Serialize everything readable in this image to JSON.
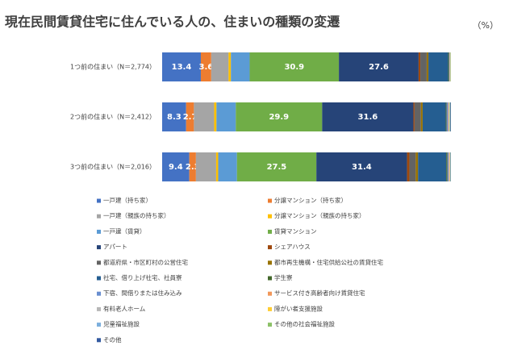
{
  "chart_data": {
    "type": "stacked-barh",
    "title": "現在民間賃貸住宅に住んでいる人の、住まいの種類の変遷",
    "unit": "（%）",
    "categories": [
      "1つ前の住まい（N＝2,774）",
      "2つ前の住まい（N＝2,412）",
      "3つ前の住まい（N＝2,016）"
    ],
    "xlim": [
      0,
      100
    ],
    "legend": "bottom",
    "series": [
      {
        "name": "一戸建（持ち家）",
        "color": "#4472c4",
        "values": [
          13.4,
          8.3,
          9.4
        ],
        "data_labels": true
      },
      {
        "name": "分譲マンション（持ち家）",
        "color": "#ed7d31",
        "values": [
          3.6,
          2.7,
          2.3
        ],
        "data_labels": true
      },
      {
        "name": "一戸建（親族の持ち家）",
        "color": "#a5a5a5",
        "values": [
          6.0,
          7.0,
          7.0
        ]
      },
      {
        "name": "分譲マンション（親族の持ち家）",
        "color": "#ffc000",
        "values": [
          0.8,
          0.8,
          0.7
        ]
      },
      {
        "name": "一戸建（賃貸）",
        "color": "#5b9bd5",
        "values": [
          6.5,
          6.7,
          6.5
        ]
      },
      {
        "name": "賃貸マンション",
        "color": "#70ad47",
        "values": [
          30.9,
          29.9,
          27.5
        ],
        "data_labels": true
      },
      {
        "name": "アパート",
        "color": "#264478",
        "values": [
          27.6,
          31.6,
          31.4
        ],
        "data_labels": true
      },
      {
        "name": "シェアハウス",
        "color": "#9e480e",
        "values": [
          0.6,
          0.4,
          0.8
        ]
      },
      {
        "name": "都道府県・市区町村の公営住宅",
        "color": "#636363",
        "values": [
          2.2,
          2.2,
          2.2
        ]
      },
      {
        "name": "都市再生機構・住宅供給公社の賃貸住宅",
        "color": "#997300",
        "values": [
          0.6,
          0.6,
          0.8
        ]
      },
      {
        "name": "社宅、借り上げ社宅、社員寮",
        "color": "#255e91",
        "values": [
          6.8,
          8.0,
          9.8
        ]
      },
      {
        "name": "学生寮",
        "color": "#43682b",
        "values": [
          0.3,
          0.3,
          0.4
        ]
      },
      {
        "name": "下宿、間借りまたは住み込み",
        "color": "#698ed0",
        "values": [
          0.2,
          0.5,
          0.4
        ]
      },
      {
        "name": "サービス付き高齢者向け賃貸住宅",
        "color": "#f1975a",
        "values": [
          0.1,
          0.2,
          0.2
        ]
      },
      {
        "name": "有料老人ホーム",
        "color": "#b7b7b7",
        "values": [
          0.1,
          0.2,
          0.2
        ]
      },
      {
        "name": "障がい者支援施設",
        "color": "#ffcd33",
        "values": [
          0.1,
          0.1,
          0.1
        ]
      },
      {
        "name": "児童福祉施設",
        "color": "#7cafdd",
        "values": [
          0.1,
          0.1,
          0.1
        ]
      },
      {
        "name": "その他の社会福祉施設",
        "color": "#8cc168",
        "values": [
          0.1,
          0.2,
          0.1
        ]
      },
      {
        "name": "その他",
        "color": "#335aa1",
        "values": [
          0,
          0.2,
          0.1
        ]
      }
    ]
  }
}
